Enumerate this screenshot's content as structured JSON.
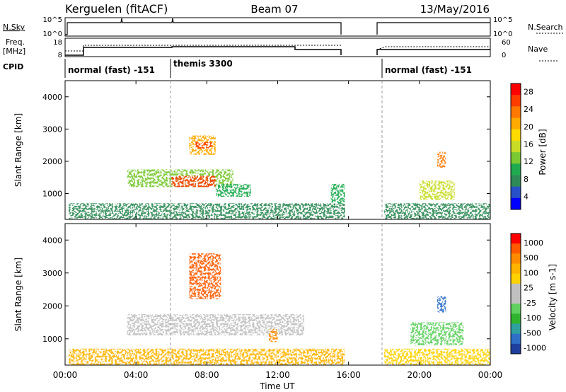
{
  "header": {
    "station": "Kerguelen (fitACF)",
    "beam": "Beam 07",
    "date": "13/May/2016"
  },
  "panels": {
    "nsky": {
      "label": "N.Sky",
      "ticks": [
        "10^5",
        "10^0"
      ],
      "right_label": "N.Search",
      "right_ticks": [
        "10^5",
        "10^0"
      ]
    },
    "freq": {
      "label_lines": [
        "Freq.",
        "[MHz]"
      ],
      "ticks": [
        "18",
        "8"
      ],
      "right_label": "Nave",
      "right_ticks": [
        "60",
        "0"
      ]
    },
    "cpid": {
      "label": "CPID",
      "segments": [
        "normal (fast) -151",
        "themis 3300",
        "normal (fast) -151"
      ]
    }
  },
  "chart_data": [
    {
      "type": "heatmap",
      "title": "",
      "ylabel": "Slant Range [km]",
      "yticks": [
        "1000",
        "2000",
        "3000",
        "4000"
      ],
      "ylim": [
        200,
        4500
      ],
      "colorbar": {
        "label": "Power [dB]",
        "ticks": [
          "4",
          "8",
          "12",
          "16",
          "20",
          "24",
          "28"
        ],
        "colors": [
          "#0000ff",
          "#2850c8",
          "#2e8b57",
          "#1faa50",
          "#7ac832",
          "#c8dc28",
          "#ffdc00",
          "#ffaa00",
          "#ff7800",
          "#ff3c00",
          "#ff0000"
        ]
      },
      "regions": [
        {
          "t": [
            0.2,
            15.8
          ],
          "r": [
            200,
            700
          ],
          "level": 2
        },
        {
          "t": [
            3.5,
            9.5
          ],
          "r": [
            1200,
            1750
          ],
          "level": 4
        },
        {
          "t": [
            6.0,
            8.5
          ],
          "r": [
            1200,
            1550
          ],
          "level": 9
        },
        {
          "t": [
            7.0,
            8.5
          ],
          "r": [
            2200,
            2800
          ],
          "level": 7
        },
        {
          "t": [
            7.3,
            8.3
          ],
          "r": [
            2400,
            2600
          ],
          "level": 9
        },
        {
          "t": [
            8.5,
            10.5
          ],
          "r": [
            900,
            1300
          ],
          "level": 3
        },
        {
          "t": [
            15.0,
            15.8
          ],
          "r": [
            700,
            1300
          ],
          "level": 3
        },
        {
          "t": [
            20.0,
            22.0
          ],
          "r": [
            800,
            1400
          ],
          "level": 5
        },
        {
          "t": [
            21.0,
            21.5
          ],
          "r": [
            1800,
            2300
          ],
          "level": 8
        },
        {
          "t": [
            18.0,
            24.0
          ],
          "r": [
            200,
            700
          ],
          "level": 2
        }
      ]
    },
    {
      "type": "heatmap",
      "title": "",
      "ylabel": "Slant Range [km]",
      "yticks": [
        "1000",
        "2000",
        "3000",
        "4000"
      ],
      "ylim": [
        200,
        4500
      ],
      "xlabel": "Time UT",
      "xticks": [
        "00:00",
        "04:00",
        "08:00",
        "12:00",
        "16:00",
        "20:00",
        "00:00"
      ],
      "xlim": [
        0,
        24
      ],
      "colorbar": {
        "label": "Velocity [m s-1]",
        "ticks": [
          "1000",
          "500",
          "100",
          "25",
          "-25",
          "-100",
          "-500",
          "-1000"
        ],
        "colors": [
          "#1f3f9f",
          "#2f6fc7",
          "#2fa0a0",
          "#30b430",
          "#60d060",
          "#c0c0c0",
          "#c0c0c0",
          "#ffd200",
          "#ffb400",
          "#ff8c00",
          "#ff5a00",
          "#ff0000"
        ]
      },
      "regions": [
        {
          "t": [
            0.2,
            15.8
          ],
          "r": [
            200,
            700
          ],
          "level": 8
        },
        {
          "t": [
            3.5,
            13.5
          ],
          "r": [
            1100,
            1750
          ],
          "level": 5
        },
        {
          "t": [
            7.0,
            8.8
          ],
          "r": [
            2200,
            3600
          ],
          "level": 10
        },
        {
          "t": [
            11.5,
            12.0
          ],
          "r": [
            900,
            1300
          ],
          "level": 9
        },
        {
          "t": [
            18.0,
            24.0
          ],
          "r": [
            200,
            700
          ],
          "level": 7
        },
        {
          "t": [
            19.5,
            22.5
          ],
          "r": [
            800,
            1500
          ],
          "level": 4
        },
        {
          "t": [
            21.0,
            21.5
          ],
          "r": [
            1800,
            2300
          ],
          "level": 1
        }
      ]
    }
  ]
}
